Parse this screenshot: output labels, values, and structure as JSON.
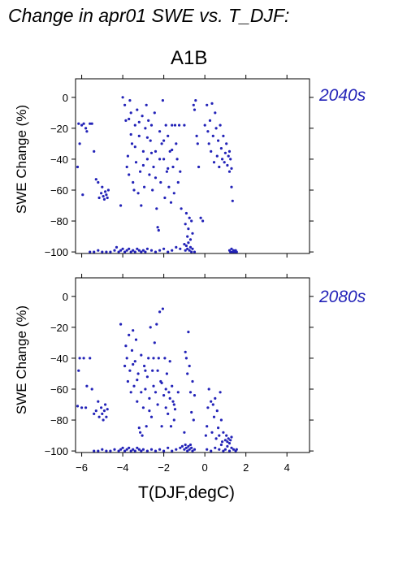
{
  "title": "Change in apr01 SWE vs. T_DJF:",
  "scenario": "A1B",
  "colors": {
    "points": "#2323b8",
    "period_label": "#2323b8"
  },
  "chart_data": [
    {
      "type": "scatter",
      "period": "2040s",
      "ylabel": "SWE Change (%)",
      "xlabel": "",
      "xlim": [
        -6.3,
        5.1
      ],
      "ylim": [
        -101,
        12
      ],
      "yticks": [
        0,
        -20,
        -40,
        -60,
        -80,
        -100
      ],
      "xticks": [
        -6,
        -4,
        -2,
        0,
        2,
        4
      ],
      "show_x_ticklabels": false,
      "points": [
        [
          -6.2,
          -45
        ],
        [
          -6.15,
          -17
        ],
        [
          -6.1,
          -30
        ],
        [
          -6.0,
          -18
        ],
        [
          -5.9,
          -17
        ],
        [
          -5.8,
          -20
        ],
        [
          -5.75,
          -22
        ],
        [
          -5.95,
          -63
        ],
        [
          -5.6,
          -17
        ],
        [
          -5.5,
          -17
        ],
        [
          -5.4,
          -35
        ],
        [
          -5.3,
          -53
        ],
        [
          -5.2,
          -55
        ],
        [
          -5.15,
          -65
        ],
        [
          -5.05,
          -62
        ],
        [
          -5.0,
          -58
        ],
        [
          -4.95,
          -64
        ],
        [
          -4.9,
          -66
        ],
        [
          -4.85,
          -61
        ],
        [
          -4.8,
          -63
        ],
        [
          -4.75,
          -65
        ],
        [
          -4.7,
          -60
        ],
        [
          -4.1,
          -70
        ],
        [
          -4.0,
          0
        ],
        [
          -3.9,
          -5
        ],
        [
          -3.85,
          -15
        ],
        [
          -3.8,
          -45
        ],
        [
          -3.75,
          -38
        ],
        [
          -3.7,
          -50
        ],
        [
          -3.65,
          -2
        ],
        [
          -3.6,
          -10
        ],
        [
          -3.55,
          -30
        ],
        [
          -3.5,
          -55
        ],
        [
          -3.45,
          -60
        ],
        [
          -3.4,
          -18
        ],
        [
          -3.35,
          -42
        ],
        [
          -3.3,
          -8
        ],
        [
          -3.25,
          -62
        ],
        [
          -3.2,
          -25
        ],
        [
          -3.15,
          -48
        ],
        [
          -3.1,
          -70
        ],
        [
          -3.05,
          -12
        ],
        [
          -3.0,
          -35
        ],
        [
          -2.95,
          -58
        ],
        [
          -2.9,
          -20
        ],
        [
          -2.85,
          -5
        ],
        [
          -2.8,
          -40
        ],
        [
          -2.75,
          -15
        ],
        [
          -2.7,
          -50
        ],
        [
          -2.65,
          -28
        ],
        [
          -2.6,
          -18
        ],
        [
          -2.55,
          -60
        ],
        [
          -2.5,
          -45
        ],
        [
          -2.45,
          -10
        ],
        [
          -2.4,
          -35
        ],
        [
          -2.35,
          -72
        ],
        [
          -2.3,
          -84
        ],
        [
          -2.25,
          -86
        ],
        [
          -2.2,
          -22
        ],
        [
          -2.15,
          -55
        ],
        [
          -2.1,
          -30
        ],
        [
          -2.05,
          -2
        ],
        [
          -2.0,
          -40
        ],
        [
          -1.95,
          -65
        ],
        [
          -1.9,
          -18
        ],
        [
          -1.85,
          -48
        ],
        [
          -1.8,
          -25
        ],
        [
          -1.75,
          -58
        ],
        [
          -1.7,
          -35
        ],
        [
          -1.65,
          -68
        ],
        [
          -1.6,
          -18
        ],
        [
          -1.55,
          -45
        ],
        [
          -1.5,
          -62
        ],
        [
          -1.45,
          -18
        ],
        [
          -1.4,
          -30
        ],
        [
          -1.35,
          -40
        ],
        [
          -1.3,
          -55
        ],
        [
          -1.25,
          -18
        ],
        [
          -1.2,
          -48
        ],
        [
          -1.15,
          -72
        ],
        [
          -1.0,
          -18
        ],
        [
          -0.95,
          -82
        ],
        [
          -0.9,
          -75
        ],
        [
          -0.85,
          -90
        ],
        [
          -0.8,
          -85
        ],
        [
          -0.75,
          -78
        ],
        [
          -0.7,
          -92
        ],
        [
          -0.65,
          -80
        ],
        [
          -0.6,
          -88
        ],
        [
          -0.55,
          -5
        ],
        [
          -0.5,
          -8
        ],
        [
          -0.45,
          -2
        ],
        [
          -0.4,
          -25
        ],
        [
          -0.35,
          -30
        ],
        [
          -0.3,
          -45
        ],
        [
          -3.7,
          -14
        ],
        [
          -3.6,
          -24
        ],
        [
          -3.4,
          -32
        ],
        [
          -3.2,
          -16
        ],
        [
          -3.0,
          -44
        ],
        [
          -2.8,
          -26
        ],
        [
          -2.6,
          -36
        ],
        [
          -2.4,
          -52
        ],
        [
          -2.2,
          -40
        ],
        [
          -2.0,
          -28
        ],
        [
          -1.8,
          -46
        ],
        [
          -1.6,
          -34
        ],
        [
          -0.2,
          -78
        ],
        [
          -0.1,
          -80
        ],
        [
          0.0,
          -18
        ],
        [
          0.1,
          -5
        ],
        [
          0.15,
          -22
        ],
        [
          0.2,
          -30
        ],
        [
          0.25,
          -15
        ],
        [
          0.3,
          -35
        ],
        [
          0.35,
          -4
        ],
        [
          0.4,
          -25
        ],
        [
          0.45,
          -42
        ],
        [
          0.5,
          -10
        ],
        [
          0.55,
          -20
        ],
        [
          0.6,
          -38
        ],
        [
          0.65,
          -28
        ],
        [
          0.7,
          -45
        ],
        [
          0.75,
          -18
        ],
        [
          0.8,
          -33
        ],
        [
          0.85,
          -40
        ],
        [
          0.9,
          -25
        ],
        [
          0.95,
          -42
        ],
        [
          1.0,
          -36
        ],
        [
          1.05,
          -30
        ],
        [
          1.1,
          -44
        ],
        [
          1.15,
          -38
        ],
        [
          1.2,
          -48
        ],
        [
          1.25,
          -40
        ],
        [
          1.3,
          -58
        ],
        [
          1.35,
          -67
        ],
        [
          1.3,
          -46
        ],
        [
          1.2,
          -35
        ],
        [
          -5.6,
          -100
        ],
        [
          -5.4,
          -100
        ],
        [
          -5.2,
          -99
        ],
        [
          -5.0,
          -100
        ],
        [
          -4.8,
          -100
        ],
        [
          -4.6,
          -100
        ],
        [
          -4.4,
          -99
        ],
        [
          -4.3,
          -97
        ],
        [
          -4.2,
          -100
        ],
        [
          -4.1,
          -99
        ],
        [
          -4.0,
          -98
        ],
        [
          -3.9,
          -100
        ],
        [
          -3.8,
          -99
        ],
        [
          -3.7,
          -98
        ],
        [
          -3.6,
          -100
        ],
        [
          -3.5,
          -99
        ],
        [
          -3.4,
          -100
        ],
        [
          -3.3,
          -98
        ],
        [
          -3.2,
          -99
        ],
        [
          -3.1,
          -100
        ],
        [
          -3.0,
          -99
        ],
        [
          -2.9,
          -100
        ],
        [
          -2.8,
          -98
        ],
        [
          -2.6,
          -99
        ],
        [
          -2.4,
          -100
        ],
        [
          -2.2,
          -99
        ],
        [
          -2.0,
          -98
        ],
        [
          -1.8,
          -100
        ],
        [
          -1.6,
          -99
        ],
        [
          -1.4,
          -97
        ],
        [
          -1.2,
          -98
        ],
        [
          -1.0,
          -95
        ],
        [
          -0.95,
          -99
        ],
        [
          -0.9,
          -96
        ],
        [
          -0.85,
          -98
        ],
        [
          -0.8,
          -94
        ],
        [
          -0.75,
          -99
        ],
        [
          -0.7,
          -97
        ],
        [
          -0.65,
          -100
        ],
        [
          -0.6,
          -98
        ],
        [
          -0.5,
          -100
        ],
        [
          1.2,
          -99
        ],
        [
          1.25,
          -100
        ],
        [
          1.3,
          -98
        ],
        [
          1.35,
          -100
        ],
        [
          1.4,
          -99
        ],
        [
          1.45,
          -100
        ],
        [
          1.5,
          -99
        ],
        [
          1.55,
          -100
        ]
      ]
    },
    {
      "type": "scatter",
      "period": "2080s",
      "ylabel": "SWE Change (%)",
      "xlabel": "T(DJF,degC)",
      "xlim": [
        -6.3,
        5.1
      ],
      "ylim": [
        -101,
        12
      ],
      "yticks": [
        0,
        -20,
        -40,
        -60,
        -80,
        -100
      ],
      "xticks": [
        -6,
        -4,
        -2,
        0,
        2,
        4
      ],
      "show_x_ticklabels": true,
      "points": [
        [
          -6.2,
          -71
        ],
        [
          -6.15,
          -48
        ],
        [
          -6.1,
          -40
        ],
        [
          -6.0,
          -72
        ],
        [
          -5.9,
          -40
        ],
        [
          -5.8,
          -72
        ],
        [
          -5.75,
          -58
        ],
        [
          -5.6,
          -40
        ],
        [
          -5.5,
          -60
        ],
        [
          -5.4,
          -76
        ],
        [
          -5.3,
          -74
        ],
        [
          -5.2,
          -68
        ],
        [
          -5.15,
          -78
        ],
        [
          -5.05,
          -72
        ],
        [
          -5.0,
          -76
        ],
        [
          -4.95,
          -80
        ],
        [
          -4.9,
          -74
        ],
        [
          -4.85,
          -70
        ],
        [
          -4.8,
          -78
        ],
        [
          -4.75,
          -73
        ],
        [
          -4.1,
          -18
        ],
        [
          -3.9,
          -45
        ],
        [
          -3.85,
          -32
        ],
        [
          -3.8,
          -40
        ],
        [
          -3.75,
          -55
        ],
        [
          -3.7,
          -25
        ],
        [
          -3.65,
          -48
        ],
        [
          -3.6,
          -62
        ],
        [
          -3.55,
          -35
        ],
        [
          -3.5,
          -22
        ],
        [
          -3.45,
          -58
        ],
        [
          -3.4,
          -42
        ],
        [
          -3.35,
          -28
        ],
        [
          -3.3,
          -68
        ],
        [
          -3.25,
          -50
        ],
        [
          -3.2,
          -85
        ],
        [
          -3.15,
          -88
        ],
        [
          -3.1,
          -38
        ],
        [
          -3.05,
          -90
        ],
        [
          -3.0,
          -72
        ],
        [
          -2.95,
          -45
        ],
        [
          -2.9,
          -60
        ],
        [
          -2.85,
          -84
        ],
        [
          -2.8,
          -52
        ],
        [
          -2.75,
          -40
        ],
        [
          -2.7,
          -66
        ],
        [
          -2.65,
          -20
        ],
        [
          -2.6,
          -78
        ],
        [
          -2.55,
          -48
        ],
        [
          -2.5,
          -58
        ],
        [
          -2.45,
          -30
        ],
        [
          -2.4,
          -62
        ],
        [
          -2.35,
          -18
        ],
        [
          -2.3,
          -70
        ],
        [
          -2.25,
          -40
        ],
        [
          -2.2,
          -10
        ],
        [
          -2.15,
          -55
        ],
        [
          -2.1,
          -84
        ],
        [
          -2.05,
          -8
        ],
        [
          -2.0,
          -64
        ],
        [
          -1.95,
          -40
        ],
        [
          -1.9,
          -72
        ],
        [
          -1.85,
          -50
        ],
        [
          -1.8,
          -76
        ],
        [
          -1.75,
          -62
        ],
        [
          -1.7,
          -42
        ],
        [
          -1.65,
          -84
        ],
        [
          -1.6,
          -58
        ],
        [
          -1.55,
          -68
        ],
        [
          -1.5,
          -80
        ],
        [
          -1.45,
          -73
        ],
        [
          -3.5,
          -44
        ],
        [
          -3.3,
          -54
        ],
        [
          -3.1,
          -62
        ],
        [
          -2.9,
          -48
        ],
        [
          -2.7,
          -74
        ],
        [
          -2.5,
          -40
        ],
        [
          -2.3,
          -48
        ],
        [
          -2.1,
          -56
        ],
        [
          -1.9,
          -60
        ],
        [
          -1.7,
          -66
        ],
        [
          -1.5,
          -70
        ],
        [
          -1.3,
          -62
        ],
        [
          -1.0,
          -88
        ],
        [
          -0.95,
          -36
        ],
        [
          -0.9,
          -40
        ],
        [
          -0.85,
          -50
        ],
        [
          -0.8,
          -23
        ],
        [
          -0.75,
          -45
        ],
        [
          -0.7,
          -62
        ],
        [
          -0.65,
          -75
        ],
        [
          -0.6,
          -55
        ],
        [
          -0.55,
          -80
        ],
        [
          -0.5,
          -64
        ],
        [
          0.05,
          -90
        ],
        [
          0.1,
          -84
        ],
        [
          0.15,
          -72
        ],
        [
          0.2,
          -60
        ],
        [
          0.3,
          -68
        ],
        [
          0.35,
          -88
        ],
        [
          0.4,
          -70
        ],
        [
          0.45,
          -78
        ],
        [
          0.5,
          -66
        ],
        [
          0.55,
          -92
        ],
        [
          0.6,
          -74
        ],
        [
          0.65,
          -85
        ],
        [
          0.7,
          -90
        ],
        [
          0.75,
          -62
        ],
        [
          0.8,
          -80
        ],
        [
          0.85,
          -94
        ],
        [
          0.9,
          -88
        ],
        [
          1.0,
          -93
        ],
        [
          1.05,
          -90
        ],
        [
          1.1,
          -94
        ],
        [
          1.15,
          -92
        ],
        [
          1.2,
          -95
        ],
        [
          1.25,
          -93
        ],
        [
          1.3,
          -91
        ],
        [
          -5.4,
          -100
        ],
        [
          -5.2,
          -100
        ],
        [
          -5.0,
          -99
        ],
        [
          -4.8,
          -100
        ],
        [
          -4.6,
          -100
        ],
        [
          -4.4,
          -99
        ],
        [
          -4.2,
          -100
        ],
        [
          -4.1,
          -99
        ],
        [
          -4.0,
          -98
        ],
        [
          -3.9,
          -100
        ],
        [
          -3.8,
          -99
        ],
        [
          -3.7,
          -98
        ],
        [
          -3.6,
          -100
        ],
        [
          -3.5,
          -99
        ],
        [
          -3.4,
          -100
        ],
        [
          -3.3,
          -98
        ],
        [
          -3.2,
          -99
        ],
        [
          -3.1,
          -100
        ],
        [
          -3.0,
          -99
        ],
        [
          -2.8,
          -100
        ],
        [
          -2.6,
          -99
        ],
        [
          -2.4,
          -100
        ],
        [
          -2.2,
          -99
        ],
        [
          -2.0,
          -100
        ],
        [
          -1.8,
          -98
        ],
        [
          -1.6,
          -100
        ],
        [
          -1.4,
          -99
        ],
        [
          -1.2,
          -98
        ],
        [
          -1.1,
          -97
        ],
        [
          -1.0,
          -99
        ],
        [
          -0.95,
          -96
        ],
        [
          -0.9,
          -98
        ],
        [
          -0.85,
          -100
        ],
        [
          -0.8,
          -97
        ],
        [
          -0.75,
          -99
        ],
        [
          -0.7,
          -96
        ],
        [
          -0.65,
          -98
        ],
        [
          -0.6,
          -100
        ],
        [
          -0.5,
          -99
        ],
        [
          0.1,
          -99
        ],
        [
          0.3,
          -100
        ],
        [
          0.5,
          -98
        ],
        [
          0.7,
          -99
        ],
        [
          0.8,
          -96
        ],
        [
          0.9,
          -100
        ],
        [
          1.0,
          -99
        ],
        [
          1.1,
          -97
        ],
        [
          1.2,
          -100
        ],
        [
          1.3,
          -98
        ],
        [
          1.4,
          -99
        ],
        [
          1.5,
          -100
        ],
        [
          1.55,
          -99
        ]
      ]
    }
  ]
}
